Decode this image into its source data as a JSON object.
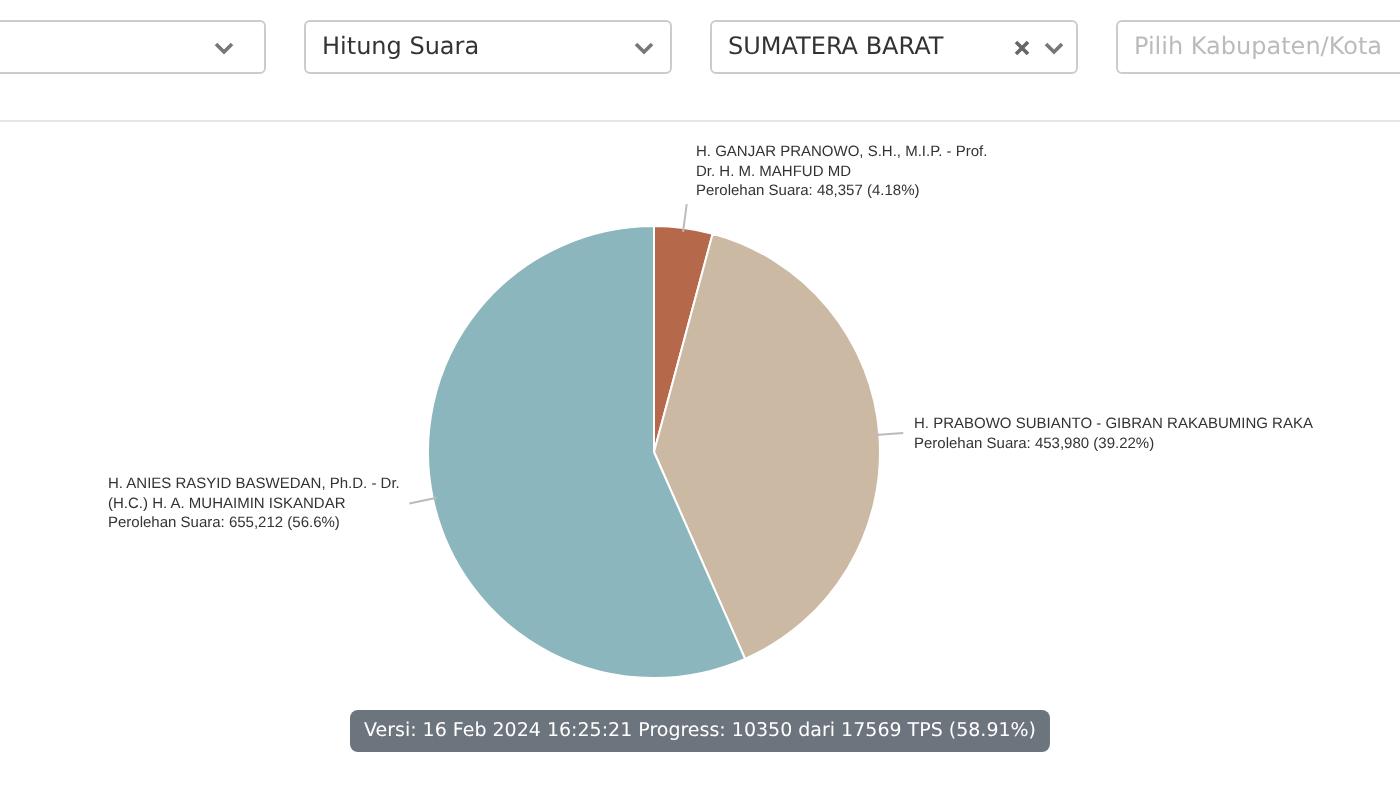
{
  "chart_data": {
    "type": "pie",
    "categories": [
      "H. GANJAR PRANOWO, S.H., M.I.P. - Prof. Dr. H. M. MAHFUD MD",
      "H. PRABOWO SUBIANTO - GIBRAN RAKABUMING RAKA",
      "H. ANIES RASYID BASWEDAN, Ph.D. - Dr. (H.C.) H. A. MUHAIMIN ISKANDAR"
    ],
    "values": [
      48357,
      453980,
      655212
    ],
    "colors": [
      "#b5694a",
      "#cbb9a4",
      "#8cb6bd"
    ],
    "value_labels": [
      "Perolehan Suara: 48,357 (4.18%)",
      "Perolehan Suara: 453,980 (39.22%)",
      "Perolehan Suara: 655,212 (56.6%)"
    ],
    "legend": false,
    "annotations": [
      "Hitung Suara",
      "SUMATERA BARAT",
      "Pilih Kabupaten/Kota",
      "Versi: 16 Feb 2024 16:25:21 Progress: 10350 dari 17569 TPS (58.91%)"
    ]
  }
}
